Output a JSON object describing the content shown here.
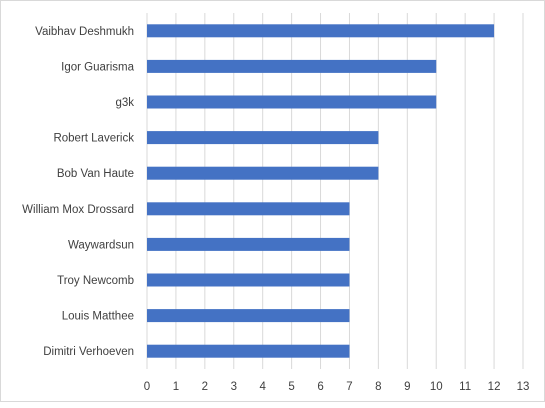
{
  "chart_data": {
    "type": "bar",
    "orientation": "horizontal",
    "categories": [
      "Vaibhav Deshmukh",
      "Igor Guarisma",
      "g3k",
      "Robert Laverick",
      "Bob Van Haute",
      "William Mox Drossard",
      "Waywardsun",
      "Troy Newcomb",
      "Louis Matthee",
      "Dimitri Verhoeven"
    ],
    "values": [
      12,
      10,
      10,
      8,
      8,
      7,
      7,
      7,
      7,
      7
    ],
    "xlim": [
      0,
      13
    ],
    "x_ticks": [
      "0",
      "1",
      "2",
      "3",
      "4",
      "5",
      "6",
      "7",
      "8",
      "9",
      "10",
      "11",
      "12",
      "13"
    ],
    "grid": "vertical",
    "legend": "none",
    "colors": {
      "bar": "#4472c4",
      "grid": "#d9d9d9",
      "text": "#404040",
      "border": "#d9d9d9"
    }
  }
}
